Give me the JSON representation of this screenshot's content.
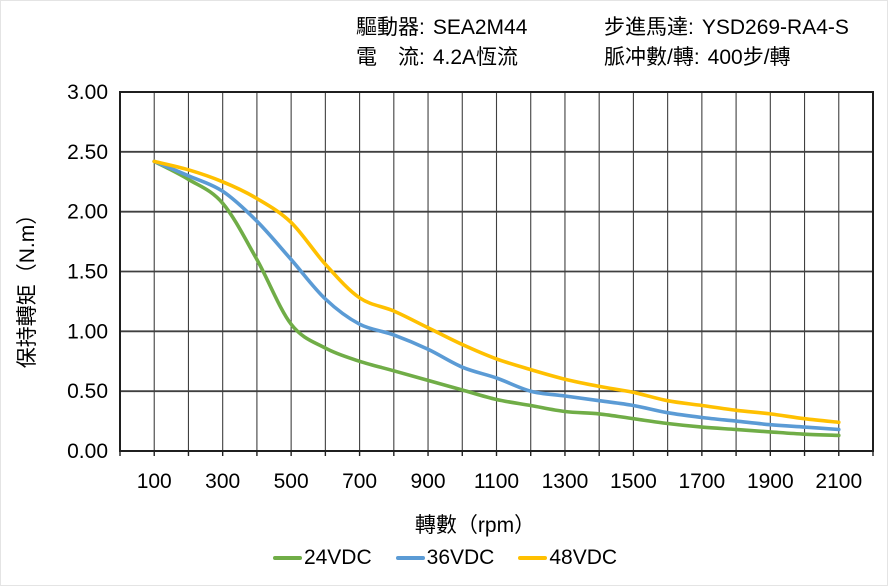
{
  "header": {
    "left": [
      {
        "label": "驅動器:",
        "value": "SEA2M44"
      },
      {
        "label": "電　流:",
        "value": "4.2A恆流"
      }
    ],
    "right": [
      {
        "label": "步進馬達:",
        "value": "YSD269-RA4-S"
      },
      {
        "label": "脈冲數/轉:",
        "value": "400步/轉"
      }
    ]
  },
  "chart_data": {
    "type": "line",
    "title": "",
    "xlabel": "轉數（rpm）",
    "ylabel": "保持轉矩（N.m）",
    "xlim": [
      0,
      2200
    ],
    "ylim": [
      0,
      3.0
    ],
    "grid": {
      "on": true,
      "x_step": 100,
      "y_step": 0.5
    },
    "legend_position": "bottom",
    "xticks": [
      100,
      300,
      500,
      700,
      900,
      1100,
      1300,
      1500,
      1700,
      1900,
      2100
    ],
    "yticks": [
      0,
      0.5,
      1.0,
      1.5,
      2.0,
      2.5,
      3.0
    ],
    "ytick_labels": [
      "0.00",
      "0.50",
      "1.00",
      "1.50",
      "2.00",
      "2.50",
      "3.00"
    ],
    "x": [
      100,
      200,
      300,
      400,
      500,
      600,
      700,
      800,
      900,
      1000,
      1100,
      1200,
      1300,
      1400,
      1500,
      1600,
      1700,
      1800,
      1900,
      2000,
      2100
    ],
    "series": [
      {
        "name": "24VDC",
        "color": "#70AD47",
        "values": [
          2.42,
          2.27,
          2.07,
          1.6,
          1.06,
          0.86,
          0.75,
          0.67,
          0.59,
          0.51,
          0.43,
          0.38,
          0.33,
          0.31,
          0.27,
          0.23,
          0.2,
          0.18,
          0.16,
          0.14,
          0.13
        ]
      },
      {
        "name": "36VDC",
        "color": "#5B9BD5",
        "values": [
          2.42,
          2.3,
          2.17,
          1.92,
          1.6,
          1.27,
          1.06,
          0.97,
          0.85,
          0.7,
          0.61,
          0.5,
          0.46,
          0.42,
          0.38,
          0.32,
          0.28,
          0.25,
          0.22,
          0.2,
          0.18
        ]
      },
      {
        "name": "48VDC",
        "color": "#FFC000",
        "values": [
          2.42,
          2.35,
          2.25,
          2.11,
          1.91,
          1.56,
          1.28,
          1.17,
          1.03,
          0.89,
          0.77,
          0.68,
          0.6,
          0.54,
          0.49,
          0.42,
          0.38,
          0.34,
          0.31,
          0.27,
          0.24
        ]
      }
    ],
    "colors": {
      "grid": "#404040",
      "border": "#1f1f1f",
      "text": "#000000",
      "background": "#ffffff"
    }
  }
}
